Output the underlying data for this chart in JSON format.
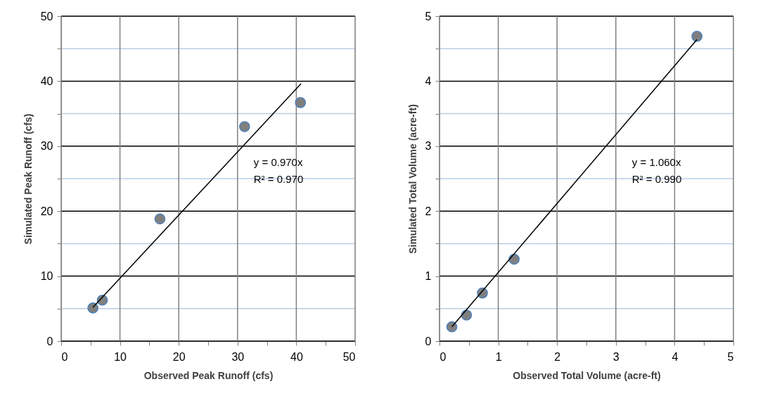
{
  "chart_data": [
    {
      "type": "scatter",
      "xlabel": "Observed Peak Runoff (cfs)",
      "ylabel": "Simulated Peak Runoff (cfs)",
      "xlim": [
        0,
        50
      ],
      "ylim": [
        0,
        50
      ],
      "xticks": [
        0,
        {
          "value": 5,
          "label": null
        },
        10,
        {
          "value": 15,
          "label": null
        },
        20,
        {
          "value": 25,
          "label": null
        },
        30,
        {
          "value": 35,
          "label": null
        },
        40,
        {
          "value": 45,
          "label": null
        },
        50
      ],
      "yticks": [
        0,
        {
          "value": 5,
          "label": null
        },
        10,
        {
          "value": 15,
          "label": null
        },
        20,
        {
          "value": 25,
          "label": null
        },
        30,
        {
          "value": 35,
          "label": null
        },
        40,
        {
          "value": 45,
          "label": null
        },
        50
      ],
      "grid": true,
      "series": [
        {
          "marker": "circle",
          "color": "#7f7f7f",
          "x": [
            5.4,
            7.0,
            16.8,
            31.2,
            40.7
          ],
          "values": [
            5.1,
            6.3,
            18.8,
            33.0,
            36.7
          ]
        },
        {
          "type": "line",
          "marker": "none",
          "line_style": "solid",
          "color": "#000000",
          "x": [
            5.4,
            40.8
          ],
          "values": [
            5.2,
            39.6
          ]
        }
      ],
      "annotations": [
        "y = 0.970x",
        "R² = 0.970"
      ]
    },
    {
      "type": "scatter",
      "xlabel": "Observed Total Volume (acre-ft)",
      "ylabel": "Simulated Total Volume (acre-ft)",
      "xlim": [
        0,
        5
      ],
      "ylim": [
        0,
        5
      ],
      "xticks": [
        0,
        {
          "value": 0.5,
          "label": null
        },
        1,
        {
          "value": 1.5,
          "label": null
        },
        2,
        {
          "value": 2.5,
          "label": null
        },
        3,
        {
          "value": 3.5,
          "label": null
        },
        4,
        {
          "value": 4.5,
          "label": null
        },
        5
      ],
      "yticks": [
        0,
        {
          "value": 0.5,
          "label": null
        },
        1,
        {
          "value": 1.5,
          "label": null
        },
        2,
        {
          "value": 2.5,
          "label": null
        },
        3,
        {
          "value": 3.5,
          "label": null
        },
        4,
        {
          "value": 4.5,
          "label": null
        },
        5
      ],
      "grid": true,
      "series": [
        {
          "marker": "circle",
          "color": "#7f7f7f",
          "x": [
            0.21,
            0.46,
            0.73,
            1.27,
            4.38
          ],
          "values": [
            0.22,
            0.4,
            0.74,
            1.26,
            4.69
          ]
        },
        {
          "type": "line",
          "marker": "none",
          "line_style": "solid",
          "color": "#000000",
          "x": [
            0.21,
            4.38
          ],
          "values": [
            0.22,
            4.64
          ]
        }
      ],
      "annotations": [
        "y = 1.060x",
        "R² = 0.990"
      ]
    }
  ]
}
